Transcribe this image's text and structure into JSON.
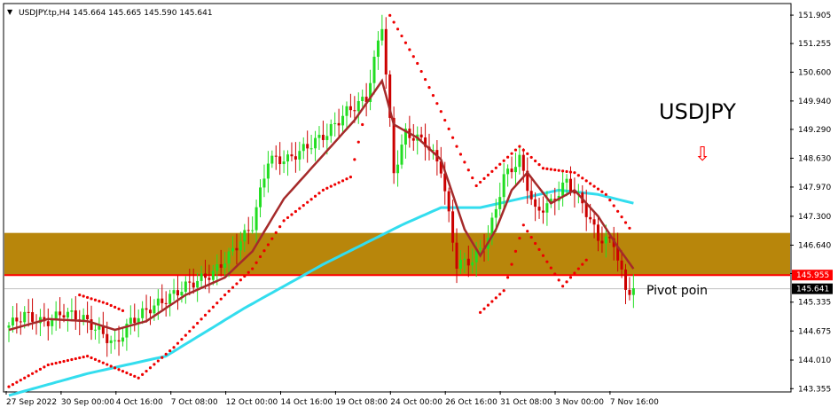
{
  "header": {
    "arrow_glyph": "▼",
    "info_line": "USDJPY.tp,H4  145.664 145.665 145.590 145.641"
  },
  "annotations": {
    "symbol_label": "USDJPY",
    "pivot_label": "Pivot poin",
    "down_arrow_glyph": "⇩"
  },
  "colors": {
    "bull_candle": "#22dd22",
    "bear_candle": "#cc0000",
    "sar_dots": "#ee0000",
    "slow_ma": "#33ddee",
    "fast_ma": "#a52a2a",
    "zone_fill": "#b8860b",
    "resistance_line": "#ff0000",
    "current_price_line": "#c0c0c0",
    "label_bg_red": "#ff0000",
    "label_bg_black": "#000000"
  },
  "chart_data": {
    "type": "candlestick",
    "symbol": "USDJPY.tp",
    "timeframe": "H4",
    "ohlc": {
      "open": 145.664,
      "high": 145.665,
      "low": 145.59,
      "close": 145.641
    },
    "y_ticks": [
      151.905,
      151.255,
      150.6,
      149.94,
      149.29,
      148.63,
      147.97,
      147.3,
      146.64,
      145.99,
      145.335,
      144.675,
      144.01,
      143.355
    ],
    "x_ticks": [
      "27 Sep 2022",
      "30 Sep 00:00",
      "4 Oct 16:00",
      "7 Oct 08:00",
      "12 Oct 00:00",
      "14 Oct 16:00",
      "19 Oct 08:00",
      "24 Oct 00:00",
      "26 Oct 16:00",
      "31 Oct 08:00",
      "3 Nov 00:00",
      "7 Nov 16:00"
    ],
    "ylim": [
      143.3,
      152.15
    ],
    "price_labels": {
      "resistance": "145.955",
      "current": "145.641"
    },
    "zone": {
      "low": 145.955,
      "high": 146.92
    },
    "resistance_level": 145.955,
    "current_price": 145.641,
    "close_path": [
      {
        "x": 0,
        "y": 144.8
      },
      {
        "x": 4,
        "y": 145.05
      },
      {
        "x": 9,
        "y": 144.85
      },
      {
        "x": 14,
        "y": 145.1
      },
      {
        "x": 19,
        "y": 144.95
      },
      {
        "x": 24,
        "y": 144.6
      },
      {
        "x": 27,
        "y": 144.35
      },
      {
        "x": 31,
        "y": 144.9
      },
      {
        "x": 36,
        "y": 145.2
      },
      {
        "x": 40,
        "y": 145.4
      },
      {
        "x": 45,
        "y": 145.7
      },
      {
        "x": 52,
        "y": 146.0
      },
      {
        "x": 56,
        "y": 146.4
      },
      {
        "x": 62,
        "y": 147.1
      },
      {
        "x": 66,
        "y": 148.6
      },
      {
        "x": 71,
        "y": 148.6
      },
      {
        "x": 76,
        "y": 148.9
      },
      {
        "x": 81,
        "y": 149.2
      },
      {
        "x": 86,
        "y": 149.7
      },
      {
        "x": 91,
        "y": 150.0
      },
      {
        "x": 95,
        "y": 151.7
      },
      {
        "x": 98,
        "y": 148.3
      },
      {
        "x": 101,
        "y": 149.2
      },
      {
        "x": 106,
        "y": 149.0
      },
      {
        "x": 110,
        "y": 148.4
      },
      {
        "x": 114,
        "y": 146.2
      },
      {
        "x": 118,
        "y": 146.3
      },
      {
        "x": 122,
        "y": 146.8
      },
      {
        "x": 126,
        "y": 148.2
      },
      {
        "x": 130,
        "y": 148.6
      },
      {
        "x": 134,
        "y": 147.4
      },
      {
        "x": 138,
        "y": 147.6
      },
      {
        "x": 142,
        "y": 148.1
      },
      {
        "x": 146,
        "y": 147.6
      },
      {
        "x": 150,
        "y": 146.8
      },
      {
        "x": 154,
        "y": 146.7
      },
      {
        "x": 157,
        "y": 145.6
      },
      {
        "x": 159,
        "y": 145.64
      }
    ],
    "fast_ma_path": [
      {
        "x": 0,
        "y": 144.7
      },
      {
        "x": 10,
        "y": 144.95
      },
      {
        "x": 20,
        "y": 144.9
      },
      {
        "x": 27,
        "y": 144.7
      },
      {
        "x": 35,
        "y": 144.9
      },
      {
        "x": 45,
        "y": 145.5
      },
      {
        "x": 55,
        "y": 145.9
      },
      {
        "x": 62,
        "y": 146.5
      },
      {
        "x": 70,
        "y": 147.7
      },
      {
        "x": 80,
        "y": 148.7
      },
      {
        "x": 88,
        "y": 149.5
      },
      {
        "x": 95,
        "y": 150.4
      },
      {
        "x": 98,
        "y": 149.4
      },
      {
        "x": 104,
        "y": 149.1
      },
      {
        "x": 110,
        "y": 148.6
      },
      {
        "x": 116,
        "y": 147.0
      },
      {
        "x": 120,
        "y": 146.4
      },
      {
        "x": 124,
        "y": 147.0
      },
      {
        "x": 128,
        "y": 147.9
      },
      {
        "x": 132,
        "y": 148.3
      },
      {
        "x": 138,
        "y": 147.6
      },
      {
        "x": 144,
        "y": 147.9
      },
      {
        "x": 150,
        "y": 147.3
      },
      {
        "x": 155,
        "y": 146.6
      },
      {
        "x": 159,
        "y": 146.1
      }
    ],
    "slow_ma_path": [
      {
        "x": 0,
        "y": 143.2
      },
      {
        "x": 20,
        "y": 143.7
      },
      {
        "x": 40,
        "y": 144.1
      },
      {
        "x": 60,
        "y": 145.2
      },
      {
        "x": 80,
        "y": 146.2
      },
      {
        "x": 100,
        "y": 147.1
      },
      {
        "x": 110,
        "y": 147.5
      },
      {
        "x": 120,
        "y": 147.5
      },
      {
        "x": 130,
        "y": 147.7
      },
      {
        "x": 140,
        "y": 147.9
      },
      {
        "x": 150,
        "y": 147.8
      },
      {
        "x": 159,
        "y": 147.6
      }
    ],
    "sar_above_path": [
      {
        "x": 18,
        "y": 145.5
      },
      {
        "x": 25,
        "y": 145.3
      },
      {
        "x": 30,
        "y": 145.1
      },
      {
        "x": 97,
        "y": 151.9
      },
      {
        "x": 104,
        "y": 150.8
      },
      {
        "x": 110,
        "y": 149.7
      },
      {
        "x": 114,
        "y": 148.9
      },
      {
        "x": 119,
        "y": 148.0
      },
      {
        "x": 130,
        "y": 148.9
      },
      {
        "x": 136,
        "y": 148.4
      },
      {
        "x": 144,
        "y": 148.3
      },
      {
        "x": 152,
        "y": 147.8
      },
      {
        "x": 159,
        "y": 146.9
      }
    ],
    "sar_below_path": [
      {
        "x": 0,
        "y": 143.4
      },
      {
        "x": 10,
        "y": 143.9
      },
      {
        "x": 20,
        "y": 144.1
      },
      {
        "x": 33,
        "y": 143.6
      },
      {
        "x": 42,
        "y": 144.3
      },
      {
        "x": 55,
        "y": 145.5
      },
      {
        "x": 62,
        "y": 146.1
      },
      {
        "x": 70,
        "y": 147.2
      },
      {
        "x": 80,
        "y": 147.9
      },
      {
        "x": 87,
        "y": 148.2
      },
      {
        "x": 91,
        "y": 149.8
      },
      {
        "x": 120,
        "y": 145.1
      },
      {
        "x": 126,
        "y": 145.6
      },
      {
        "x": 131,
        "y": 147.1
      },
      {
        "x": 141,
        "y": 145.7
      },
      {
        "x": 148,
        "y": 146.4
      }
    ]
  }
}
